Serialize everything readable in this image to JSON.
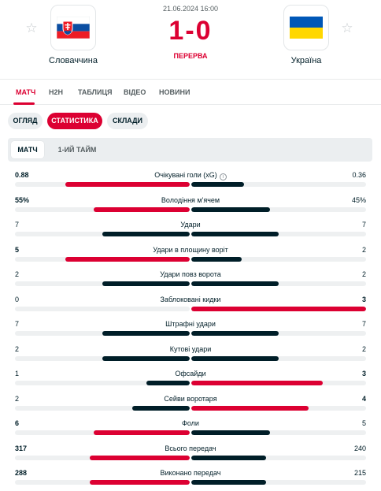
{
  "match": {
    "date": "21.06.2024 16:00",
    "score": "1-0",
    "status": "ПЕРЕРВА",
    "home": {
      "name": "Словаччина"
    },
    "away": {
      "name": "Україна"
    }
  },
  "tabs": [
    {
      "label": "МАТЧ",
      "active": true
    },
    {
      "label": "H2H",
      "active": false
    },
    {
      "label": "ТАБЛИЦЯ",
      "active": false
    },
    {
      "label": "ВІДЕО",
      "active": false
    },
    {
      "label": "НОВИНИ",
      "active": false
    }
  ],
  "subtabs": [
    {
      "label": "ОГЛЯД",
      "active": false
    },
    {
      "label": "СТАТИСТИКА",
      "active": true
    },
    {
      "label": "СКЛАДИ",
      "active": false
    }
  ],
  "periods": [
    {
      "label": "МАТЧ",
      "active": true
    },
    {
      "label": "1-ИЙ ТАЙМ",
      "active": false
    }
  ],
  "stats": [
    {
      "category": "Очікувані голи (xG)",
      "home": "0.88",
      "away": "0.36",
      "home_share": 0.71,
      "away_share": 0.3,
      "info": true
    },
    {
      "category": "Володіння м'ячем",
      "home": "55%",
      "away": "45%",
      "home_share": 0.55,
      "away_share": 0.45
    },
    {
      "category": "Удари",
      "home": "7",
      "away": "7",
      "home_share": 0.5,
      "away_share": 0.5
    },
    {
      "category": "Удари в площину воріт",
      "home": "5",
      "away": "2",
      "home_share": 0.71,
      "away_share": 0.29
    },
    {
      "category": "Удари повз ворота",
      "home": "2",
      "away": "2",
      "home_share": 0.5,
      "away_share": 0.5
    },
    {
      "category": "Заблоковані кидки",
      "home": "0",
      "away": "3",
      "home_share": 0.0,
      "away_share": 1.0
    },
    {
      "category": "Штрафні удари",
      "home": "7",
      "away": "7",
      "home_share": 0.5,
      "away_share": 0.5
    },
    {
      "category": "Кутові удари",
      "home": "2",
      "away": "2",
      "home_share": 0.5,
      "away_share": 0.5
    },
    {
      "category": "Офсайди",
      "home": "1",
      "away": "3",
      "home_share": 0.25,
      "away_share": 0.75
    },
    {
      "category": "Сейви воротаря",
      "home": "2",
      "away": "4",
      "home_share": 0.33,
      "away_share": 0.67
    },
    {
      "category": "Фоли",
      "home": "6",
      "away": "5",
      "home_share": 0.55,
      "away_share": 0.45
    },
    {
      "category": "Всього передач",
      "home": "317",
      "away": "240",
      "home_share": 0.57,
      "away_share": 0.43
    },
    {
      "category": "Виконано передач",
      "home": "288",
      "away": "215",
      "home_share": 0.57,
      "away_share": 0.43
    }
  ],
  "colors": {
    "accent": "#dc0032",
    "dark": "#001e28",
    "track": "#eef0f1"
  }
}
